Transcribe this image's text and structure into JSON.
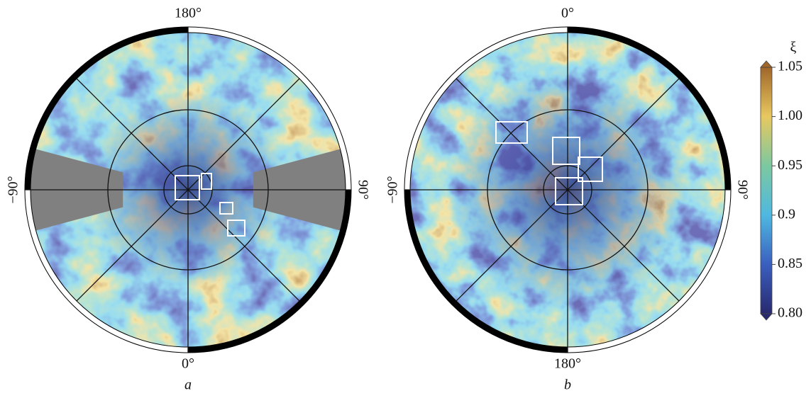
{
  "panels": [
    {
      "label": "a",
      "top": "180°",
      "bottom": "0°",
      "left": "−90°",
      "right": "90°"
    },
    {
      "label": "b",
      "top": "0°",
      "bottom": "180°",
      "left": "−90°",
      "right": "90°"
    }
  ],
  "colorbar": {
    "title": "ξ",
    "lim": [
      0.8,
      1.05
    ],
    "ticks": [
      1.05,
      {
        "value": 1.0,
        "label": "1.00"
      },
      0.95,
      0.9,
      0.85,
      {
        "value": 0.8,
        "label": "0.80"
      }
    ]
  }
}
